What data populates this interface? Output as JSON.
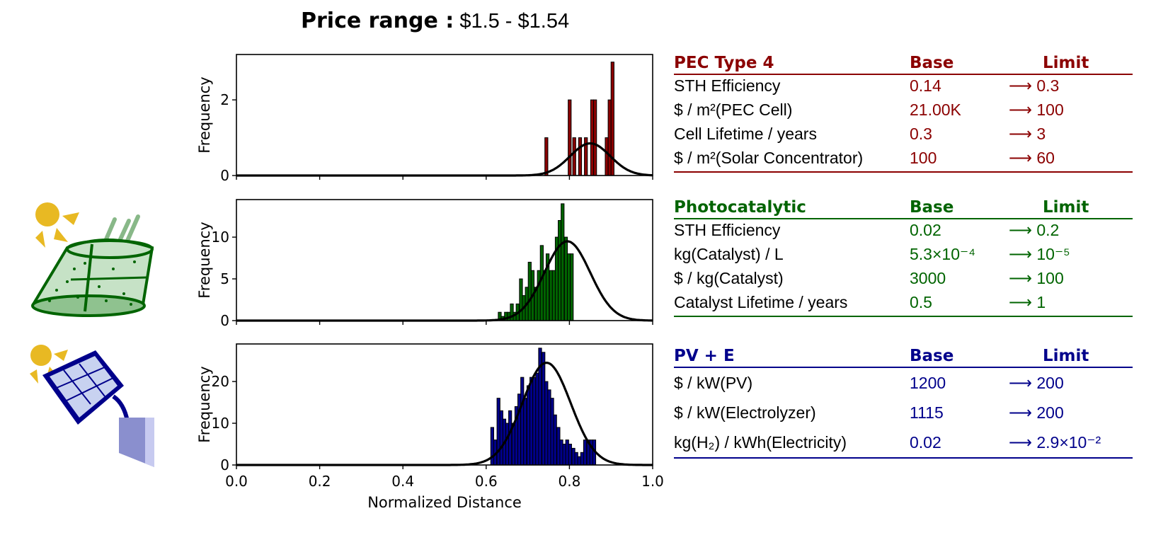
{
  "title": {
    "label": "Price range :",
    "value": "$1.5 - $1.54"
  },
  "colors": {
    "pec": "#8b0000",
    "photo": "#006400",
    "pv": "#00008b",
    "curve": "#000000"
  },
  "icons": [
    "pec-sun-icon",
    "photocatalytic-reactor-icon",
    "solar-panel-electrolyzer-icon"
  ],
  "chart_data": [
    {
      "type": "bar",
      "name": "PEC Type 4 histogram",
      "ylabel": "Frequency",
      "xlim": [
        0.0,
        1.0
      ],
      "ylim": [
        0,
        3.2
      ],
      "yticks": [
        "0",
        "2"
      ],
      "bin_width": 0.0072,
      "bins": [
        {
          "x": 0.741,
          "y": 1
        },
        {
          "x": 0.797,
          "y": 2
        },
        {
          "x": 0.808,
          "y": 1
        },
        {
          "x": 0.822,
          "y": 1
        },
        {
          "x": 0.836,
          "y": 1
        },
        {
          "x": 0.851,
          "y": 2
        },
        {
          "x": 0.858,
          "y": 2
        },
        {
          "x": 0.886,
          "y": 1
        },
        {
          "x": 0.893,
          "y": 2
        },
        {
          "x": 0.9,
          "y": 3
        }
      ],
      "fit": {
        "mu": 0.85,
        "sigma": 0.048,
        "peak": 0.85
      }
    },
    {
      "type": "bar",
      "name": "Photocatalytic histogram",
      "ylabel": "Frequency",
      "xlim": [
        0.0,
        1.0
      ],
      "ylim": [
        0,
        14.5
      ],
      "yticks": [
        "0",
        "5",
        "10"
      ],
      "bin_width": 0.0072,
      "bins": [
        {
          "x": 0.615,
          "y": 0
        },
        {
          "x": 0.622,
          "y": 0
        },
        {
          "x": 0.629,
          "y": 1
        },
        {
          "x": 0.636,
          "y": 0.5
        },
        {
          "x": 0.644,
          "y": 1
        },
        {
          "x": 0.651,
          "y": 1
        },
        {
          "x": 0.658,
          "y": 2
        },
        {
          "x": 0.665,
          "y": 1
        },
        {
          "x": 0.672,
          "y": 2
        },
        {
          "x": 0.68,
          "y": 5
        },
        {
          "x": 0.687,
          "y": 3
        },
        {
          "x": 0.694,
          "y": 4
        },
        {
          "x": 0.701,
          "y": 7
        },
        {
          "x": 0.708,
          "y": 6
        },
        {
          "x": 0.716,
          "y": 4
        },
        {
          "x": 0.723,
          "y": 6
        },
        {
          "x": 0.73,
          "y": 9
        },
        {
          "x": 0.737,
          "y": 6
        },
        {
          "x": 0.744,
          "y": 8
        },
        {
          "x": 0.752,
          "y": 6
        },
        {
          "x": 0.759,
          "y": 6
        },
        {
          "x": 0.766,
          "y": 10
        },
        {
          "x": 0.773,
          "y": 12
        },
        {
          "x": 0.78,
          "y": 14
        },
        {
          "x": 0.788,
          "y": 10
        },
        {
          "x": 0.795,
          "y": 8
        },
        {
          "x": 0.802,
          "y": 8
        }
      ],
      "fit": {
        "mu": 0.795,
        "sigma": 0.055,
        "peak": 9.5
      }
    },
    {
      "type": "bar",
      "name": "PV + E histogram",
      "ylabel": "Frequency",
      "xlabel": "Normalized Distance",
      "xlim": [
        0.0,
        1.0
      ],
      "ylim": [
        0,
        29
      ],
      "yticks": [
        "0",
        "10",
        "20"
      ],
      "xticks": [
        "0.0",
        "0.2",
        "0.4",
        "0.6",
        "0.8",
        "1.0"
      ],
      "bin_width": 0.0072,
      "bins": [
        {
          "x": 0.611,
          "y": 9
        },
        {
          "x": 0.618,
          "y": 6
        },
        {
          "x": 0.626,
          "y": 16
        },
        {
          "x": 0.633,
          "y": 13
        },
        {
          "x": 0.64,
          "y": 11
        },
        {
          "x": 0.647,
          "y": 10
        },
        {
          "x": 0.654,
          "y": 13
        },
        {
          "x": 0.662,
          "y": 10
        },
        {
          "x": 0.669,
          "y": 14
        },
        {
          "x": 0.676,
          "y": 17
        },
        {
          "x": 0.683,
          "y": 21
        },
        {
          "x": 0.69,
          "y": 16
        },
        {
          "x": 0.698,
          "y": 19
        },
        {
          "x": 0.705,
          "y": 21
        },
        {
          "x": 0.712,
          "y": 21
        },
        {
          "x": 0.719,
          "y": 22
        },
        {
          "x": 0.726,
          "y": 28
        },
        {
          "x": 0.734,
          "y": 27
        },
        {
          "x": 0.741,
          "y": 20
        },
        {
          "x": 0.748,
          "y": 18
        },
        {
          "x": 0.755,
          "y": 16
        },
        {
          "x": 0.762,
          "y": 12
        },
        {
          "x": 0.77,
          "y": 9
        },
        {
          "x": 0.777,
          "y": 6
        },
        {
          "x": 0.784,
          "y": 5
        },
        {
          "x": 0.791,
          "y": 6
        },
        {
          "x": 0.798,
          "y": 5
        },
        {
          "x": 0.806,
          "y": 4
        },
        {
          "x": 0.813,
          "y": 3
        },
        {
          "x": 0.82,
          "y": 2
        },
        {
          "x": 0.827,
          "y": 3
        },
        {
          "x": 0.834,
          "y": 6
        },
        {
          "x": 0.842,
          "y": 6
        },
        {
          "x": 0.849,
          "y": 6
        },
        {
          "x": 0.856,
          "y": 6
        }
      ],
      "fit": {
        "mu": 0.745,
        "sigma": 0.058,
        "peak": 24.5
      }
    }
  ],
  "tables": {
    "pec": {
      "heading": "PEC Type 4",
      "base": "Base",
      "limit": "Limit",
      "rows": [
        {
          "param": "STH Efficiency",
          "base": "0.14",
          "limit": "⟶ 0.3"
        },
        {
          "param": "$ / m²(PEC Cell)",
          "base": "21.00K",
          "limit": "⟶ 100"
        },
        {
          "param": "Cell Lifetime / years",
          "base": "0.3",
          "limit": "⟶ 3"
        },
        {
          "param": "$ / m²(Solar Concentrator)",
          "base": "100",
          "limit": "⟶ 60"
        }
      ]
    },
    "photo": {
      "heading": "Photocatalytic",
      "base": "Base",
      "limit": "Limit",
      "rows": [
        {
          "param": "STH Efficiency",
          "base": "0.02",
          "limit": "⟶ 0.2"
        },
        {
          "param": "kg(Catalyst) / L",
          "base": "5.3×10⁻⁴",
          "limit": "⟶ 10⁻⁵"
        },
        {
          "param": "$ / kg(Catalyst)",
          "base": "3000",
          "limit": "⟶ 100"
        },
        {
          "param": "Catalyst Lifetime / years",
          "base": "0.5",
          "limit": "⟶ 1"
        }
      ]
    },
    "pv": {
      "heading": "PV + E",
      "base": "Base",
      "limit": "Limit",
      "rows": [
        {
          "param": "$ / kW(PV)",
          "base": "1200",
          "limit": "⟶ 200"
        },
        {
          "param": "$ / kW(Electrolyzer)",
          "base": "1115",
          "limit": "⟶ 200"
        },
        {
          "param": "kg(H₂) / kWh(Electricity)",
          "base": "0.02",
          "limit": "⟶ 2.9×10⁻²"
        }
      ]
    }
  }
}
